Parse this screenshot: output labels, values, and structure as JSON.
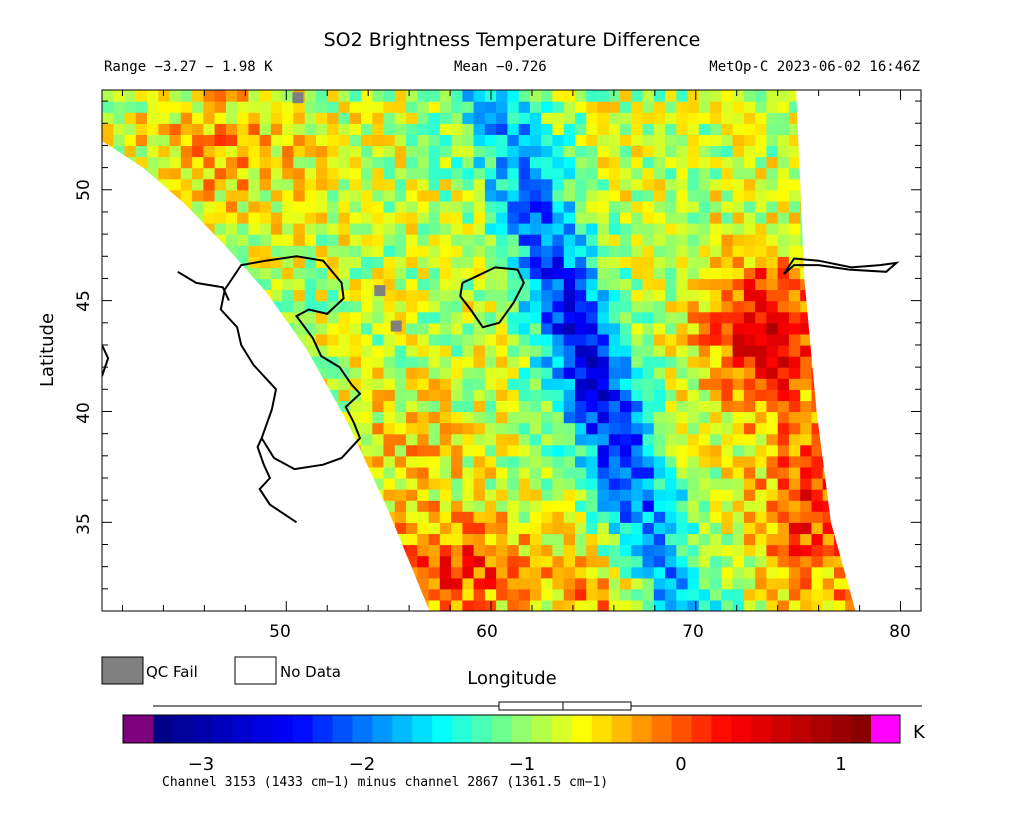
{
  "header": {
    "title": "SO2 Brightness Temperature Difference",
    "range_text": "Range −3.27 − 1.98 K",
    "mean_text": "Mean −0.726",
    "platform_text": "MetOp-C 2023-06-02 16:46Z"
  },
  "legend": {
    "qc_fail_label": "QC Fail",
    "no_data_label": "No Data",
    "qc_fail_color": "#808080",
    "no_data_color": "#ffffff"
  },
  "colorbar": {
    "unit": "K",
    "ticks": [
      "−3",
      "−2",
      "−1",
      "0",
      "1"
    ],
    "caption": "Channel 3153 (1433 cm−1) minus channel 2867 (1361.5 cm−1)",
    "under_color": "#7f007f",
    "over_color": "#ff00ff",
    "box_whisker": {
      "min": -3.27,
      "q1": -1.0,
      "median": -0.726,
      "q3": -0.3,
      "max": 1.98
    }
  },
  "chart_data": {
    "type": "heatmap",
    "title": "SO2 Brightness Temperature Difference",
    "xlabel": "Longitude",
    "ylabel": "Latitude",
    "xlim": [
      41,
      81
    ],
    "ylim": [
      31,
      54.5
    ],
    "x_ticks": [
      "50",
      "60",
      "70",
      "80"
    ],
    "y_ticks": [
      "35",
      "40",
      "45",
      "50"
    ],
    "color_range": [
      -3.4,
      1.5
    ],
    "colormap": [
      "#00007f",
      "#0000ff",
      "#00ffff",
      "#ffff00",
      "#ff0000",
      "#7f0000"
    ],
    "value_range": [
      -3.27,
      1.98
    ],
    "mean": -0.726,
    "features": [
      {
        "region": "low-value band (blue)",
        "lon": 64,
        "lat": 42,
        "value": -2.5
      },
      {
        "region": "high-value area east (red)",
        "lon": 73,
        "lat": 43.5,
        "value": 0.6
      },
      {
        "region": "high-value area south (red)",
        "lon": 61,
        "lat": 33,
        "value": 0.5
      },
      {
        "region": "high-value southeast corner",
        "lon": 77,
        "lat": 31.5,
        "value": 1.5
      }
    ]
  }
}
